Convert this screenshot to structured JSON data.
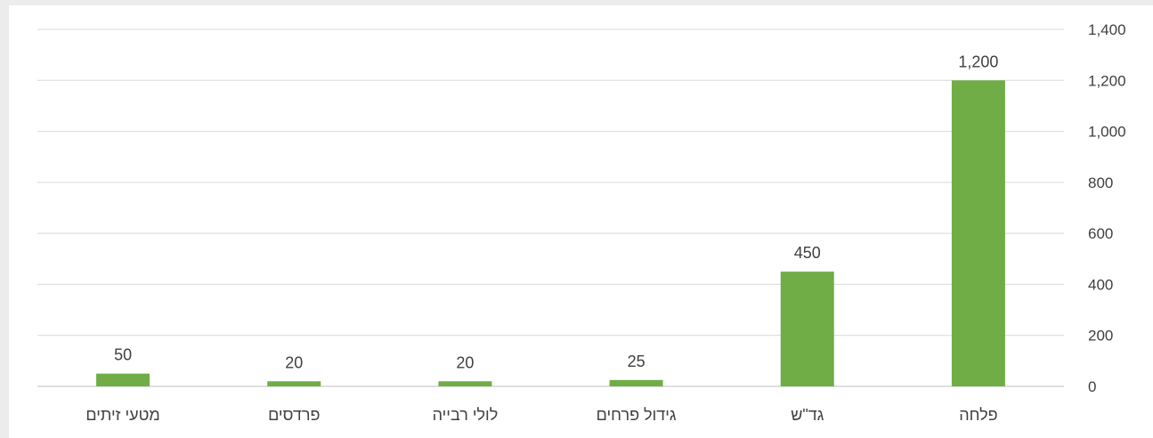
{
  "chart_data": {
    "type": "bar",
    "categories": [
      "פלחה",
      "גד\"ש",
      "גידול פרחים",
      "לולי רבייה",
      "פרדסים",
      "מטעי זיתים"
    ],
    "values": [
      1200,
      450,
      25,
      20,
      20,
      50
    ],
    "data_labels": [
      "1,200",
      "450",
      "25",
      "20",
      "20",
      "50"
    ],
    "ylim": [
      0,
      1400
    ],
    "yticks": [
      0,
      200,
      400,
      600,
      800,
      1000,
      1200,
      1400
    ],
    "ytick_labels": [
      "0",
      "200",
      "400",
      "600",
      "800",
      "1,000",
      "1,200",
      "1,400"
    ],
    "yaxis_side": "right",
    "category_order": "right-to-left",
    "grid": true,
    "legend": "none",
    "bar_color": "#70ad47",
    "grid_color": "#d9d9d9",
    "text_color": "#404040"
  }
}
